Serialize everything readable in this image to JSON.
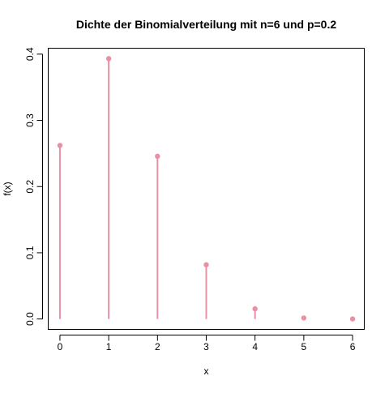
{
  "chart_data": {
    "type": "scatter",
    "style": "stem",
    "title": "Dichte der Binomialverteilung mit n=6 und p=0.2",
    "xlabel": "x",
    "ylabel": "f(x)",
    "x": [
      0,
      1,
      2,
      3,
      4,
      5,
      6
    ],
    "values": [
      0.262144,
      0.393216,
      0.24576,
      0.08192,
      0.01536,
      0.001536,
      6.4e-05
    ],
    "xlim": [
      -0.24,
      6.24
    ],
    "ylim": [
      -0.0157286,
      0.4089446
    ],
    "x_ticks": [
      "0",
      "1",
      "2",
      "3",
      "4",
      "5",
      "6"
    ],
    "y_ticks": [
      "0.0",
      "0.1",
      "0.2",
      "0.3",
      "0.4"
    ],
    "grid": false,
    "color": "#e891a5"
  }
}
